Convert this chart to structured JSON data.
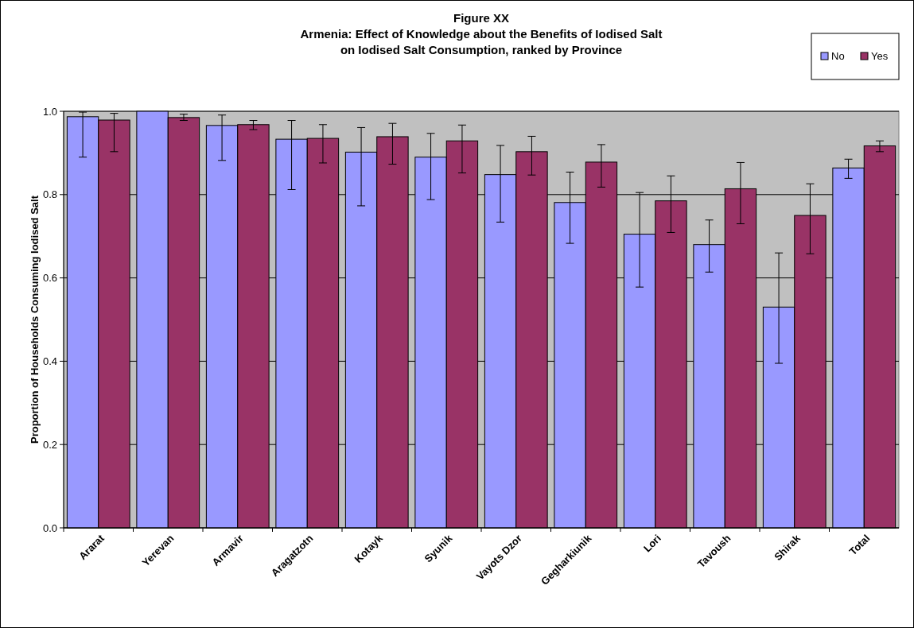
{
  "chart_data": {
    "type": "bar",
    "title": "Figure XX\nArmenia: Effect of Knowledge about the Benefits of Iodised Salt\non Iodised Salt Consumption, ranked by Province",
    "ylabel": "Proportion of Households Consuming Iodised Salt",
    "categories": [
      "Ararat",
      "Yerevan",
      "Armavir",
      "Aragatzotn",
      "Kotayk",
      "Syunik",
      "Vayots Dzor",
      "Gegharkiunik",
      "Lori",
      "Tavoush",
      "Shirak",
      "Total"
    ],
    "series": [
      {
        "name": "No",
        "color": "#9999ff",
        "values": [
          0.987,
          1.0,
          0.966,
          0.933,
          0.902,
          0.89,
          0.848,
          0.781,
          0.705,
          0.68,
          0.53,
          0.864
        ],
        "errors": [
          [
            0.89,
            0.998
          ],
          null,
          [
            0.882,
            0.991
          ],
          [
            0.812,
            0.978
          ],
          [
            0.773,
            0.961
          ],
          [
            0.788,
            0.947
          ],
          [
            0.734,
            0.918
          ],
          [
            0.683,
            0.854
          ],
          [
            0.578,
            0.805
          ],
          [
            0.614,
            0.739
          ],
          [
            0.395,
            0.66
          ],
          [
            0.839,
            0.885
          ]
        ]
      },
      {
        "name": "Yes",
        "color": "#993366",
        "values": [
          0.979,
          0.985,
          0.968,
          0.935,
          0.939,
          0.929,
          0.903,
          0.878,
          0.785,
          0.814,
          0.75,
          0.917
        ],
        "errors": [
          [
            0.903,
            0.995
          ],
          [
            0.978,
            0.993
          ],
          [
            0.956,
            0.978
          ],
          [
            0.876,
            0.968
          ],
          [
            0.873,
            0.971
          ],
          [
            0.852,
            0.967
          ],
          [
            0.847,
            0.94
          ],
          [
            0.818,
            0.92
          ],
          [
            0.709,
            0.845
          ],
          [
            0.73,
            0.877
          ],
          [
            0.658,
            0.826
          ],
          [
            0.903,
            0.929
          ]
        ]
      }
    ],
    "ylim": [
      0,
      1
    ],
    "yticks": [
      {
        "value": 0,
        "label": "0.0"
      },
      {
        "value": 0.2,
        "label": "0.2"
      },
      {
        "value": 0.4,
        "label": "0.4"
      },
      {
        "value": 0.6,
        "label": "0.6"
      },
      {
        "value": 0.8,
        "label": "0.8"
      },
      {
        "value": 1,
        "label": "1.0"
      }
    ],
    "grid": "y",
    "legend": "top right"
  }
}
